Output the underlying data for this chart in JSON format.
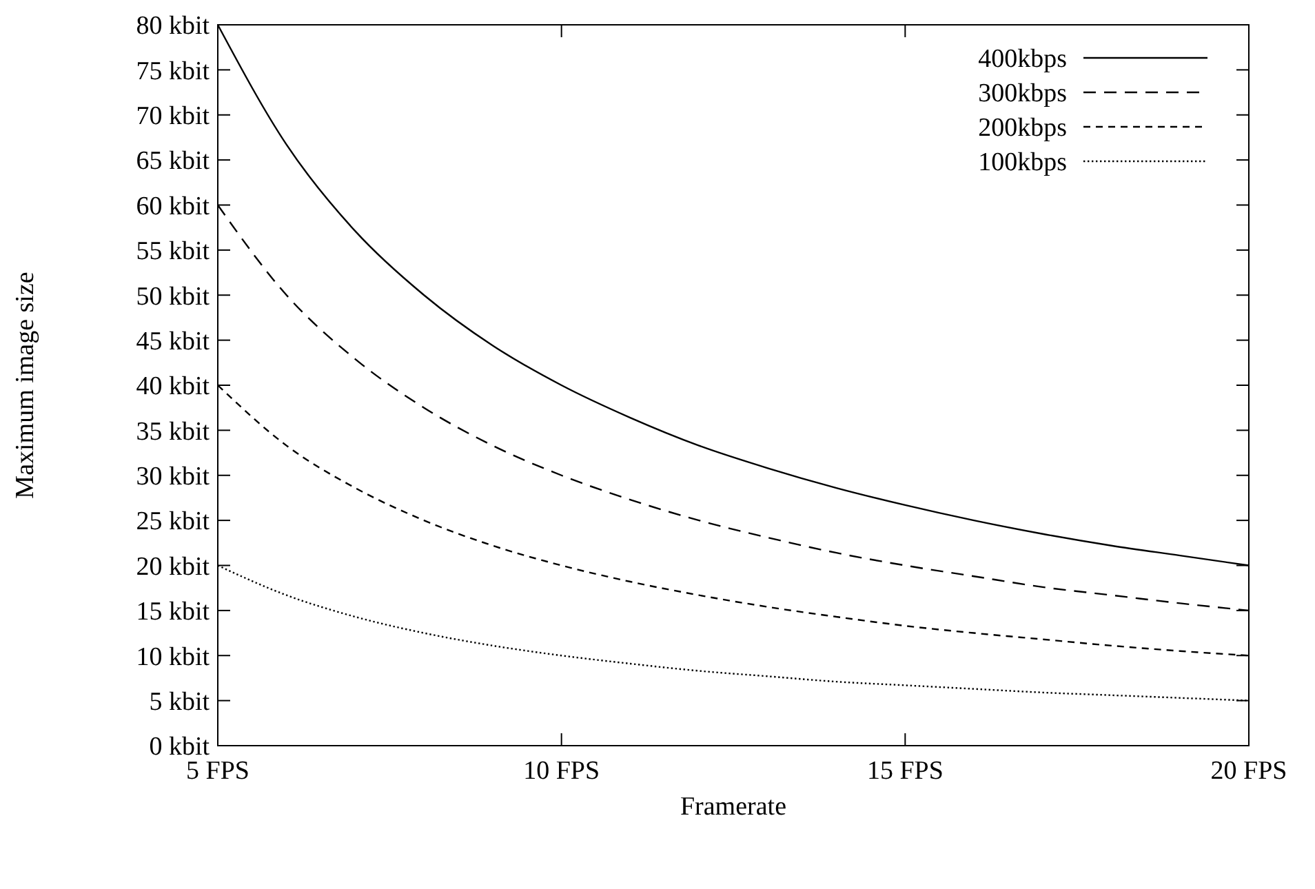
{
  "chart_data": {
    "type": "line",
    "xlabel": "Framerate",
    "ylabel": "Maximum image size",
    "x": [
      5,
      6,
      7,
      8,
      9,
      10,
      11,
      12,
      13,
      14,
      15,
      16,
      17,
      18,
      19,
      20
    ],
    "xlim": [
      5,
      20
    ],
    "ylim": [
      0,
      80
    ],
    "xticks": [
      {
        "value": 5,
        "label": "5 FPS"
      },
      {
        "value": 10,
        "label": "10 FPS"
      },
      {
        "value": 15,
        "label": "15 FPS"
      },
      {
        "value": 20,
        "label": "20 FPS"
      }
    ],
    "yticks": [
      {
        "value": 0,
        "label": "0 kbit"
      },
      {
        "value": 5,
        "label": "5 kbit"
      },
      {
        "value": 10,
        "label": "10 kbit"
      },
      {
        "value": 15,
        "label": "15 kbit"
      },
      {
        "value": 20,
        "label": "20 kbit"
      },
      {
        "value": 25,
        "label": "25 kbit"
      },
      {
        "value": 30,
        "label": "30 kbit"
      },
      {
        "value": 35,
        "label": "35 kbit"
      },
      {
        "value": 40,
        "label": "40 kbit"
      },
      {
        "value": 45,
        "label": "45 kbit"
      },
      {
        "value": 50,
        "label": "50 kbit"
      },
      {
        "value": 55,
        "label": "55 kbit"
      },
      {
        "value": 60,
        "label": "60 kbit"
      },
      {
        "value": 65,
        "label": "65 kbit"
      },
      {
        "value": 70,
        "label": "70 kbit"
      },
      {
        "value": 75,
        "label": "75 kbit"
      },
      {
        "value": 80,
        "label": "80 kbit"
      }
    ],
    "grid": false,
    "legend": "top right",
    "marker": "none",
    "series": [
      {
        "name": "400kbps",
        "color": "#000000",
        "line_style": "solid",
        "values": [
          80,
          66.7,
          57.1,
          50,
          44.4,
          40,
          36.4,
          33.3,
          30.8,
          28.6,
          26.7,
          25,
          23.5,
          22.2,
          21.1,
          20
        ]
      },
      {
        "name": "300kbps",
        "color": "#000000",
        "line_style": "dashed",
        "values": [
          60,
          50,
          42.9,
          37.5,
          33.3,
          30,
          27.3,
          25,
          23.1,
          21.4,
          20,
          18.8,
          17.6,
          16.7,
          15.8,
          15
        ]
      },
      {
        "name": "200kbps",
        "color": "#000000",
        "line_style": "dashed",
        "values": [
          40,
          33.3,
          28.6,
          25,
          22.2,
          20,
          18.2,
          16.7,
          15.4,
          14.3,
          13.3,
          12.5,
          11.8,
          11.1,
          10.5,
          10
        ]
      },
      {
        "name": "100kbps",
        "color": "#000000",
        "line_style": "dotted",
        "values": [
          20,
          16.7,
          14.3,
          12.5,
          11.1,
          10,
          9.1,
          8.3,
          7.7,
          7.1,
          6.7,
          6.3,
          5.9,
          5.6,
          5.3,
          5
        ]
      }
    ]
  }
}
